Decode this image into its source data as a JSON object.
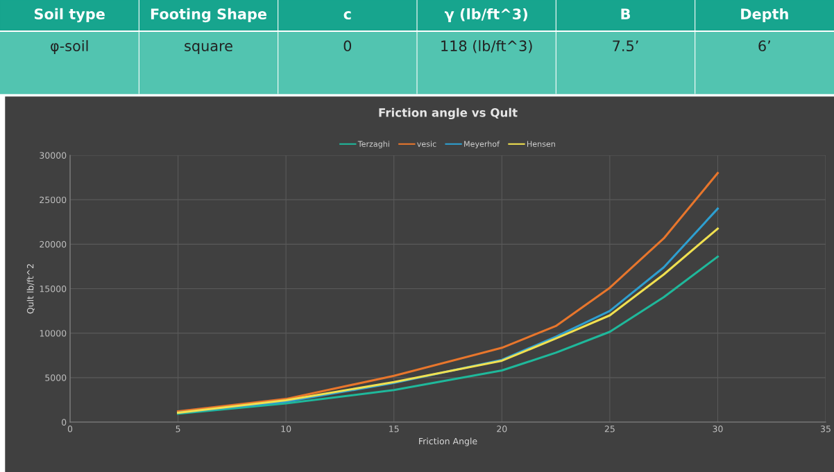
{
  "chart_data": [
    {
      "type": "other",
      "categories": [
        "Soil type",
        "Footing Shape",
        "c",
        "γ (lb/ft^3)",
        "B",
        "Depth"
      ],
      "annotations": [
        "φ-soil",
        "square",
        "0",
        "118 (lb/ft^3)",
        "7.5’",
        "6’"
      ]
    },
    {
      "type": "line",
      "title": "Friction angle vs Qult",
      "xlabel": "Friction Angle",
      "ylabel": "Qult lb/ft^2",
      "x": [
        5,
        10,
        15,
        20,
        22.5,
        25,
        27.5,
        30
      ],
      "series": [
        {
          "name": "Terzaghi",
          "color": "#1fb89b",
          "values": [
            950,
            2100,
            3600,
            5800,
            7800,
            10150,
            14050,
            18600
          ]
        },
        {
          "name": "vesic",
          "color": "#e8762c",
          "values": [
            1200,
            2600,
            5200,
            8350,
            10800,
            15100,
            20650,
            28000
          ]
        },
        {
          "name": "Meyerhof",
          "color": "#2e9fd0",
          "values": [
            1050,
            2300,
            4400,
            7000,
            9600,
            12500,
            17400,
            24000
          ]
        },
        {
          "name": "Hensen",
          "color": "#f0e050",
          "values": [
            1050,
            2450,
            4500,
            6900,
            9400,
            12000,
            16600,
            21750
          ]
        }
      ],
      "xlim": [
        0,
        35
      ],
      "xticks": [
        0,
        5,
        10,
        15,
        20,
        25,
        30,
        35
      ],
      "ylim": [
        0,
        30000
      ],
      "yticks": [
        0,
        5000,
        10000,
        15000,
        20000,
        25000,
        30000
      ],
      "grid": true,
      "legend": "top",
      "marker": "none",
      "line_style": "solid"
    }
  ]
}
